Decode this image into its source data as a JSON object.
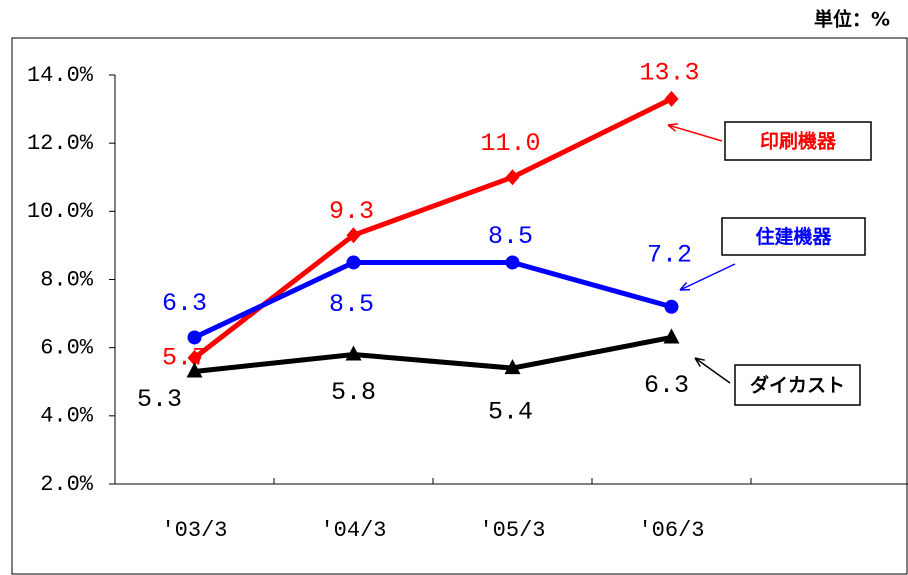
{
  "chart_data": {
    "type": "line",
    "unit": "単位：%",
    "categories": [
      "'03/3",
      "'04/3",
      "'05/3",
      "'06/3",
      null
    ],
    "series": [
      {
        "name": "印刷機器",
        "color": "#ff0000",
        "marker": "diamond",
        "values": [
          5.7,
          9.3,
          11.0,
          13.3,
          null
        ],
        "value_labels": [
          "5.7",
          "9.3",
          "11.0",
          "13.3",
          null
        ]
      },
      {
        "name": "住建機器",
        "color": "#0000ff",
        "marker": "circle",
        "values": [
          6.3,
          8.5,
          8.5,
          7.2,
          null
        ],
        "value_labels": [
          "6.3",
          "8.5",
          "8.5",
          "7.2",
          null
        ]
      },
      {
        "name": "ダイカスト",
        "color": "#000000",
        "marker": "triangle",
        "values": [
          5.3,
          5.8,
          5.4,
          6.3,
          null
        ],
        "value_labels": [
          "5.3",
          "5.8",
          "5.4",
          "6.3",
          null
        ]
      }
    ],
    "ylim": [
      2,
      14
    ],
    "yticks": [
      {
        "value": 2,
        "label": "2.0%"
      },
      {
        "value": 4,
        "label": "4.0%"
      },
      {
        "value": 6,
        "label": "6.0%"
      },
      {
        "value": 8,
        "label": "8.0%"
      },
      {
        "value": 10,
        "label": "10.0%"
      },
      {
        "value": 12,
        "label": "12.0%"
      },
      {
        "value": 14,
        "label": "14.0%"
      }
    ],
    "grid": false
  }
}
